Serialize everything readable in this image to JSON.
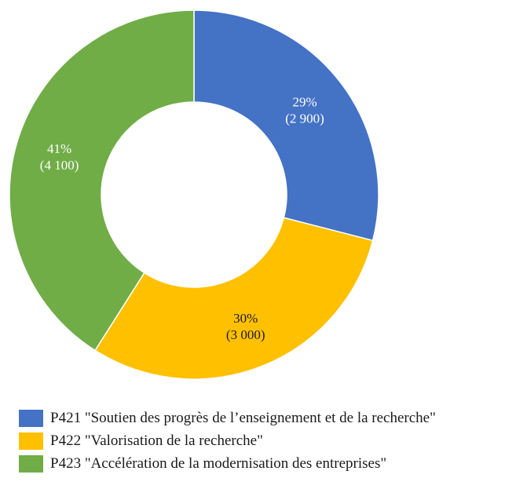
{
  "chart_data": {
    "type": "pie",
    "donut": true,
    "legend_position": "bottom",
    "slices": [
      {
        "legend": "P421 \"Soutien des progrès de l’enseignement et de la recherche\"",
        "value": 2900,
        "percent_label": "29%",
        "value_label": "(2 900)",
        "color": "#4472C4"
      },
      {
        "legend": "P422 \"Valorisation de la recherche\"",
        "value": 3000,
        "percent_label": "30%",
        "value_label": "(3 000)",
        "color": "#FFC000"
      },
      {
        "legend": "P423 \"Accélération de la modernisation des entreprises\"",
        "value": 4100,
        "percent_label": "41%",
        "value_label": "(4 100)",
        "color": "#70AD47"
      }
    ]
  }
}
